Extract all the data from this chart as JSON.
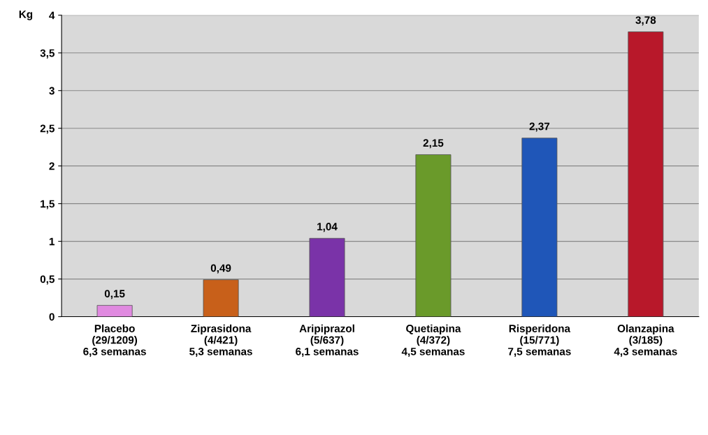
{
  "chart_data": {
    "type": "bar",
    "ylabel": "Kg",
    "categories": [
      "Placebo\n(29/1209)\n6,3 semanas",
      "Ziprasidona\n(4/421)\n5,3 semanas",
      "Aripiprazol\n(5/637)\n6,1 semanas",
      "Quetiapina\n(4/372)\n4,5 semanas",
      "Risperidona\n(15/771)\n7,5 semanas",
      "Olanzapina\n(3/185)\n4,3 semanas"
    ],
    "values": [
      0.15,
      0.49,
      1.04,
      2.15,
      2.37,
      3.78
    ],
    "colors": [
      "#e08ae0",
      "#c8601a",
      "#7a33a8",
      "#6a9a2a",
      "#1f56b8",
      "#b8182a"
    ],
    "value_labels": [
      "0,15",
      "0,49",
      "1,04",
      "2,15",
      "2,37",
      "3,78"
    ],
    "ylim": [
      0,
      4
    ],
    "yticks": [
      0,
      {
        "value": 0.5,
        "label": "0,5"
      },
      1,
      {
        "value": 1.5,
        "label": "1,5"
      },
      2,
      {
        "value": 2.5,
        "label": "2,5"
      },
      3,
      {
        "value": 3.5,
        "label": "3,5"
      },
      4
    ],
    "grid": "y"
  }
}
